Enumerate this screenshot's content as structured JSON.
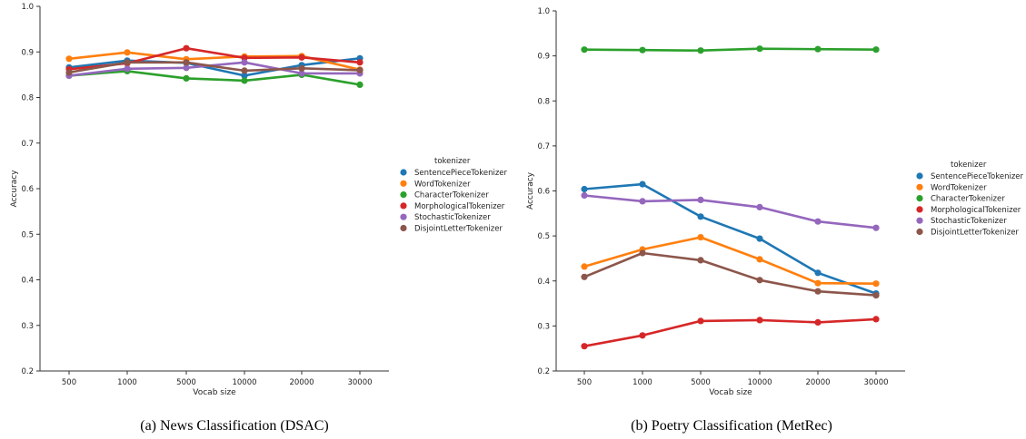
{
  "chart_data": [
    {
      "type": "line",
      "caption": "(a) News Classification (DSAC)",
      "xlabel": "Vocab size",
      "ylabel": "Accuracy",
      "categories": [
        "500",
        "1000",
        "5000",
        "10000",
        "20000",
        "30000"
      ],
      "ylim": [
        0.2,
        1.0
      ],
      "yticks": [
        "0.2",
        "0.3",
        "0.4",
        "0.5",
        "0.6",
        "0.7",
        "0.8",
        "0.9",
        "1.0"
      ],
      "legend_title": "tokenizer",
      "legend_position": "right",
      "grid": false,
      "series": [
        {
          "name": "SentencePieceTokenizer",
          "color": "#1f77b4",
          "values": [
            0.866,
            0.881,
            0.876,
            0.848,
            0.871,
            0.886
          ]
        },
        {
          "name": "WordTokenizer",
          "color": "#ff7f0e",
          "values": [
            0.885,
            0.899,
            0.884,
            0.89,
            0.891,
            0.861
          ]
        },
        {
          "name": "CharacterTokenizer",
          "color": "#2ca02c",
          "values": [
            0.848,
            0.858,
            0.842,
            0.837,
            0.85,
            0.828
          ]
        },
        {
          "name": "MorphologicalTokenizer",
          "color": "#d62728",
          "values": [
            0.862,
            0.875,
            0.908,
            0.887,
            0.888,
            0.877
          ]
        },
        {
          "name": "StochasticTokenizer",
          "color": "#9467bd",
          "values": [
            0.848,
            0.863,
            0.865,
            0.877,
            0.853,
            0.853
          ]
        },
        {
          "name": "DisjointLetterTokenizer",
          "color": "#8c564b",
          "values": [
            0.855,
            0.877,
            0.877,
            0.859,
            0.864,
            0.86
          ]
        }
      ]
    },
    {
      "type": "line",
      "caption": "(b) Poetry Classification (MetRec)",
      "xlabel": "Vocab size",
      "ylabel": "Accuracy",
      "categories": [
        "500",
        "1000",
        "5000",
        "10000",
        "20000",
        "30000"
      ],
      "ylim": [
        0.2,
        1.0
      ],
      "yticks": [
        "0.2",
        "0.3",
        "0.4",
        "0.5",
        "0.6",
        "0.7",
        "0.8",
        "0.9",
        "1.0"
      ],
      "legend_title": "tokenizer",
      "legend_position": "right",
      "grid": false,
      "series": [
        {
          "name": "SentencePieceTokenizer",
          "color": "#1f77b4",
          "values": [
            0.604,
            0.615,
            0.543,
            0.494,
            0.418,
            0.372
          ]
        },
        {
          "name": "WordTokenizer",
          "color": "#ff7f0e",
          "values": [
            0.432,
            0.47,
            0.497,
            0.448,
            0.395,
            0.394
          ]
        },
        {
          "name": "CharacterTokenizer",
          "color": "#2ca02c",
          "values": [
            0.914,
            0.913,
            0.912,
            0.916,
            0.915,
            0.914
          ]
        },
        {
          "name": "MorphologicalTokenizer",
          "color": "#d62728",
          "values": [
            0.255,
            0.279,
            0.311,
            0.313,
            0.308,
            0.315
          ]
        },
        {
          "name": "StochasticTokenizer",
          "color": "#9467bd",
          "values": [
            0.59,
            0.577,
            0.58,
            0.564,
            0.532,
            0.518
          ]
        },
        {
          "name": "DisjointLetterTokenizer",
          "color": "#8c564b",
          "values": [
            0.409,
            0.462,
            0.446,
            0.402,
            0.377,
            0.368
          ]
        }
      ]
    }
  ]
}
